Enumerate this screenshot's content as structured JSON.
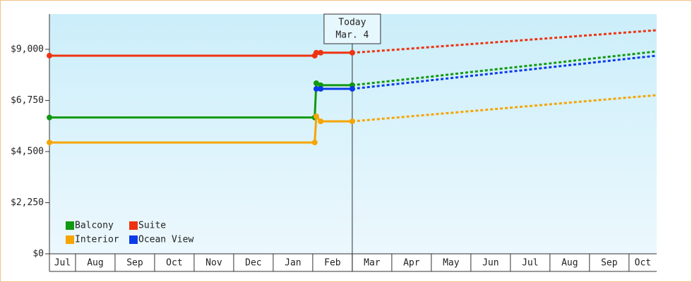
{
  "chart_data": {
    "type": "line",
    "annotation": {
      "text": "Today",
      "subtext": "Mar. 4",
      "x": 8
    },
    "x": [
      0.34,
      7.05,
      7.09,
      7.2,
      8,
      9,
      10,
      11,
      12,
      13,
      14,
      15,
      15.7
    ],
    "xlim": [
      0.34,
      15.7
    ],
    "xticks": [
      {
        "value": 0,
        "label": "Jul"
      },
      {
        "value": 1,
        "label": "Aug"
      },
      {
        "value": 2,
        "label": "Sep"
      },
      {
        "value": 3,
        "label": "Oct"
      },
      {
        "value": 4,
        "label": "Nov"
      },
      {
        "value": 5,
        "label": "Dec"
      },
      {
        "value": 6,
        "label": "Jan"
      },
      {
        "value": 7,
        "label": "Feb"
      },
      {
        "value": 8,
        "label": "Mar"
      },
      {
        "value": 9,
        "label": "Apr"
      },
      {
        "value": 10,
        "label": "May"
      },
      {
        "value": 11,
        "label": "Jun"
      },
      {
        "value": 12,
        "label": "Jul"
      },
      {
        "value": 13,
        "label": "Aug"
      },
      {
        "value": 14,
        "label": "Sep"
      },
      {
        "value": 15,
        "label": "Oct"
      }
    ],
    "ylim": [
      0,
      10550
    ],
    "yticks": [
      {
        "value": 0,
        "label": "$0"
      },
      {
        "value": 2250,
        "label": "$2,250"
      },
      {
        "value": 4500,
        "label": "$4,500"
      },
      {
        "value": 6750,
        "label": "$6,750"
      },
      {
        "value": 9000,
        "label": "$9,000"
      }
    ],
    "series": [
      {
        "name": "Balcony",
        "color": "#119911",
        "values": [
          6000,
          6000,
          7510,
          7420,
          7420,
          7610,
          7800,
          8000,
          8190,
          8380,
          8580,
          8770,
          8910
        ]
      },
      {
        "name": "Suite",
        "color": "#ee3311",
        "values": [
          8720,
          8720,
          8850,
          8850,
          8850,
          8970,
          9100,
          9230,
          9360,
          9490,
          9620,
          9750,
          9840
        ]
      },
      {
        "name": "Interior",
        "color": "#f5a500",
        "values": [
          4900,
          4900,
          6050,
          5830,
          5830,
          5980,
          6130,
          6280,
          6430,
          6580,
          6730,
          6880,
          6980
        ]
      },
      {
        "name": "Ocean View",
        "color": "#0b3be8",
        "values": [
          null,
          null,
          7260,
          7260,
          7260,
          7450,
          7640,
          7830,
          8020,
          8210,
          8400,
          8590,
          8720
        ]
      }
    ]
  }
}
